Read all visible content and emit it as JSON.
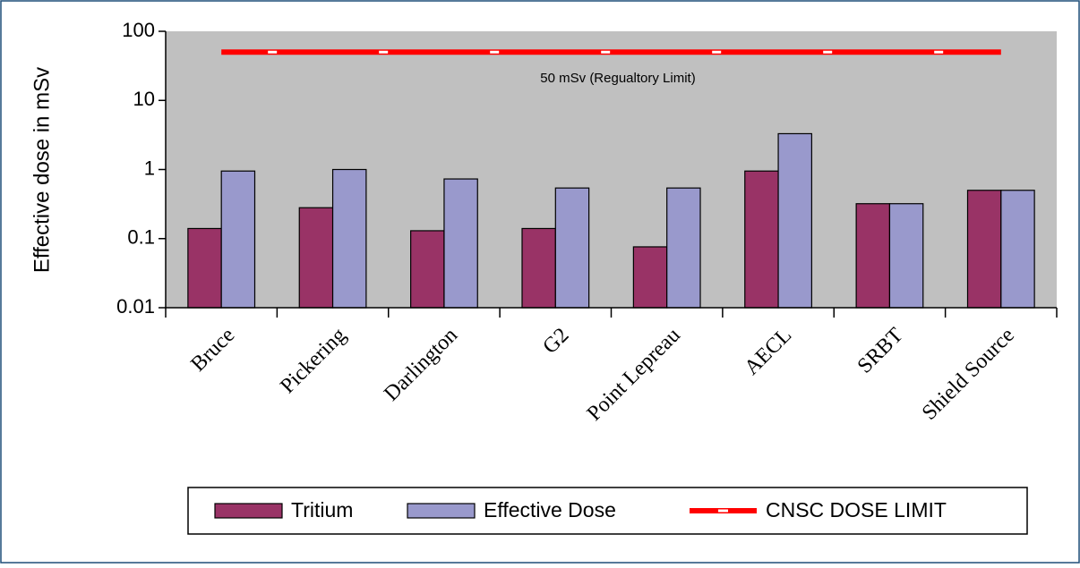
{
  "chart_data": {
    "type": "bar",
    "log_scale": true,
    "grid": false,
    "y_label": "Effective dose in mSv",
    "annotation": "50 mSv  (Regualtory Limit)",
    "categories": [
      "Bruce",
      "Pickering",
      "Darlington",
      "G2",
      "Point Lepreau",
      "AECL",
      "SRBT",
      "Shield Source"
    ],
    "series": [
      {
        "name": "Tritium",
        "color": "#993366",
        "values": [
          0.14,
          0.28,
          0.13,
          0.14,
          0.076,
          0.95,
          0.32,
          0.5
        ]
      },
      {
        "name": "Effective Dose",
        "color": "#9999cc",
        "values": [
          0.95,
          1.0,
          0.73,
          0.54,
          0.54,
          3.3,
          0.32,
          0.5
        ]
      },
      {
        "name": "CNSC DOSE LIMIT",
        "color": "#ff0000",
        "type": "line",
        "values": [
          50,
          50,
          50,
          50,
          50,
          50,
          50,
          50
        ]
      }
    ],
    "ylim": [
      0.01,
      100
    ],
    "yticks": [
      0.01,
      0.1,
      1,
      10,
      100
    ],
    "legend": "bottom"
  }
}
